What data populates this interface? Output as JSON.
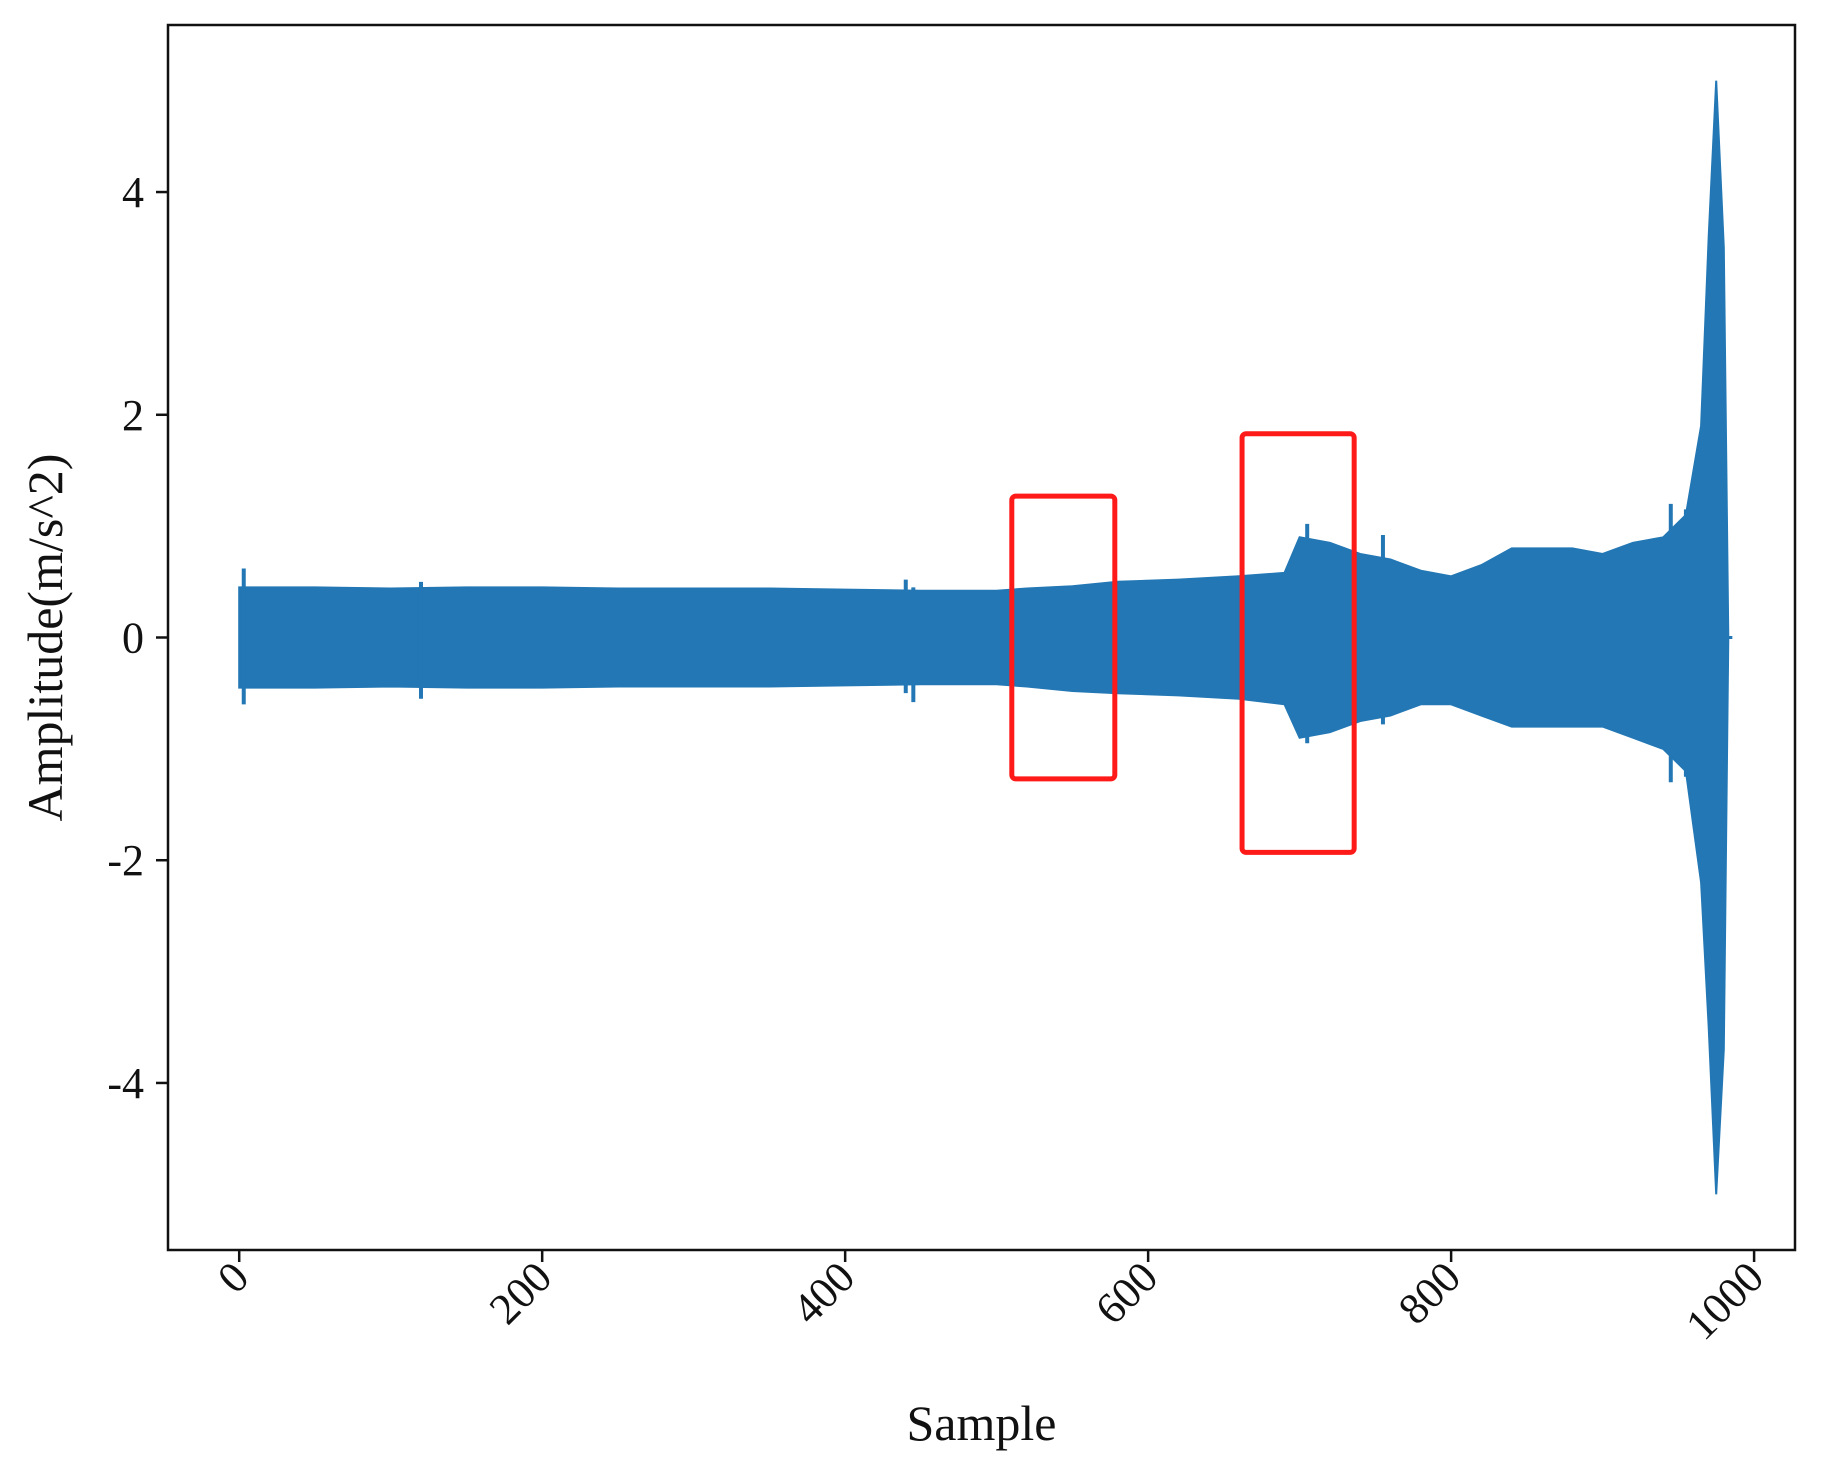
{
  "chart_data": {
    "type": "line",
    "title": "",
    "xlabel": "Sample",
    "ylabel": "Amplitude(m/s^2)",
    "xlim": [
      -47,
      1027
    ],
    "ylim": [
      -5.5,
      5.5
    ],
    "x_ticks": [
      0,
      200,
      400,
      600,
      800,
      1000
    ],
    "x_tick_labels": [
      "0",
      "200",
      "400",
      "600",
      "800",
      "1000"
    ],
    "y_ticks": [
      4,
      2,
      0,
      -2,
      -4
    ],
    "y_tick_labels": [
      "4",
      "2",
      "0",
      "-2",
      "-4"
    ],
    "grid": false,
    "legend": "none",
    "series": [
      {
        "color": "#2277b4",
        "x": [
          0,
          50,
          100,
          150,
          200,
          250,
          300,
          350,
          400,
          450,
          500,
          520,
          550,
          580,
          620,
          660,
          690,
          700,
          720,
          740,
          760,
          780,
          800,
          820,
          840,
          860,
          880,
          900,
          920,
          940,
          955,
          965,
          970,
          975,
          980,
          983
        ],
        "y_upper": [
          0.45,
          0.45,
          0.44,
          0.45,
          0.45,
          0.44,
          0.44,
          0.44,
          0.43,
          0.42,
          0.42,
          0.44,
          0.46,
          0.5,
          0.52,
          0.55,
          0.58,
          0.9,
          0.85,
          0.75,
          0.7,
          0.6,
          0.55,
          0.65,
          0.8,
          0.8,
          0.8,
          0.75,
          0.85,
          0.9,
          1.1,
          1.9,
          3.6,
          5.0,
          3.5,
          0.0
        ],
        "y_lower": [
          -0.45,
          -0.45,
          -0.44,
          -0.45,
          -0.45,
          -0.44,
          -0.44,
          -0.44,
          -0.43,
          -0.42,
          -0.42,
          -0.44,
          -0.48,
          -0.5,
          -0.52,
          -0.55,
          -0.6,
          -0.9,
          -0.85,
          -0.75,
          -0.7,
          -0.6,
          -0.6,
          -0.7,
          -0.8,
          -0.8,
          -0.8,
          -0.8,
          -0.9,
          -1.0,
          -1.2,
          -2.2,
          -3.5,
          -5.0,
          -3.7,
          0.0
        ],
        "spikes": [
          {
            "x": 3,
            "y_upper": 0.62,
            "y_lower": -0.6
          },
          {
            "x": 120,
            "y_upper": 0.5,
            "y_lower": -0.55
          },
          {
            "x": 440,
            "y_upper": 0.52,
            "y_lower": -0.5
          },
          {
            "x": 445,
            "y_upper": 0.45,
            "y_lower": -0.58
          },
          {
            "x": 705,
            "y_upper": 1.02,
            "y_lower": -0.95
          },
          {
            "x": 755,
            "y_upper": 0.92,
            "y_lower": -0.78
          },
          {
            "x": 945,
            "y_upper": 1.2,
            "y_lower": -1.3
          },
          {
            "x": 955,
            "y_upper": 1.15,
            "y_lower": -1.25
          }
        ]
      }
    ],
    "annotations": [
      {
        "type": "rectangle",
        "color": "#ff1a1a",
        "x_range": [
          510,
          578
        ],
        "y_range": [
          -1.27,
          1.27
        ]
      },
      {
        "type": "rectangle",
        "color": "#ff1a1a",
        "x_range": [
          662,
          736
        ],
        "y_range": [
          -1.93,
          1.83
        ]
      }
    ]
  }
}
